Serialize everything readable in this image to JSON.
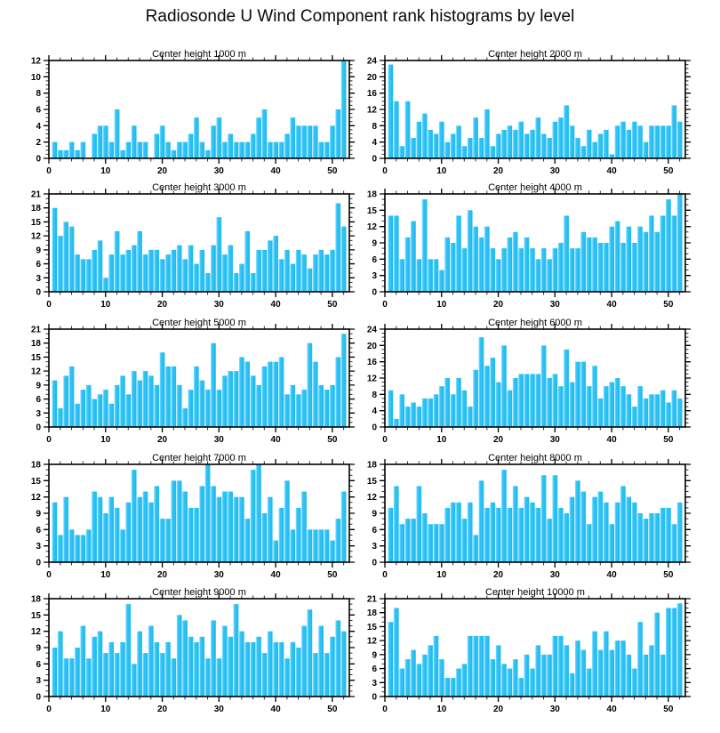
{
  "title": "Radiosonde U Wind Component rank histograms by level",
  "colors": {
    "bar_main": "#30C4F6",
    "bar_light": "#8EDFFE",
    "bar_dark": "#1FB9EF",
    "axis": "#000000",
    "minor_tick": "#333333",
    "text": "#000000",
    "background": "#FFFFFF"
  },
  "layout": {
    "rows": 5,
    "columns": 2,
    "grid": true,
    "legend": "none"
  },
  "chart_data": [
    {
      "type": "bar",
      "title": "Center height 1000 m",
      "xlim": [
        0,
        53
      ],
      "xticks": [
        0,
        10,
        20,
        30,
        40,
        50
      ],
      "x_minor_step": 2,
      "ylim": [
        0,
        12
      ],
      "ytick_step": 2,
      "values": [
        2,
        1,
        1,
        2,
        1,
        2,
        0,
        3,
        4,
        4,
        2,
        6,
        1,
        2,
        4,
        2,
        2,
        0,
        3,
        4,
        2,
        1,
        2,
        2,
        3,
        5,
        2,
        1,
        4,
        5,
        2,
        3,
        2,
        2,
        2,
        3,
        5,
        6,
        2,
        2,
        2,
        3,
        5,
        4,
        4,
        4,
        4,
        2,
        2,
        4,
        6,
        12
      ]
    },
    {
      "type": "bar",
      "title": "Center height 2000 m",
      "xlim": [
        0,
        53
      ],
      "xticks": [
        0,
        10,
        20,
        30,
        40,
        50
      ],
      "x_minor_step": 2,
      "ylim": [
        0,
        24
      ],
      "ytick_step": 4,
      "values": [
        23,
        14,
        3,
        14,
        5,
        9,
        11,
        7,
        6,
        9,
        4,
        6,
        8,
        3,
        5,
        10,
        5,
        12,
        3,
        6,
        7,
        8,
        7,
        9,
        6,
        7,
        10,
        6,
        5,
        9,
        10,
        13,
        8,
        5,
        3,
        7,
        4,
        6,
        7,
        1,
        8,
        9,
        7,
        9,
        8,
        4,
        8,
        8,
        8,
        8,
        13,
        9
      ]
    },
    {
      "type": "bar",
      "title": "Center height 3000 m",
      "xlim": [
        0,
        53
      ],
      "xticks": [
        0,
        10,
        20,
        30,
        40,
        50
      ],
      "x_minor_step": 2,
      "ylim": [
        0,
        21
      ],
      "ytick_step": 3,
      "values": [
        18,
        12,
        15,
        14,
        8,
        7,
        7,
        9,
        11,
        3,
        8,
        13,
        8,
        9,
        10,
        13,
        8,
        9,
        9,
        7,
        8,
        9,
        10,
        7,
        10,
        6,
        9,
        4,
        10,
        16,
        8,
        10,
        4,
        6,
        13,
        4,
        9,
        9,
        11,
        12,
        7,
        9,
        6,
        9,
        8,
        5,
        8,
        9,
        8,
        9,
        19,
        14
      ]
    },
    {
      "type": "bar",
      "title": "Center height 4000 m",
      "xlim": [
        0,
        53
      ],
      "xticks": [
        0,
        10,
        20,
        30,
        40,
        50
      ],
      "x_minor_step": 2,
      "ylim": [
        0,
        18
      ],
      "ytick_step": 3,
      "values": [
        14,
        14,
        6,
        10,
        13,
        6,
        17,
        6,
        6,
        4,
        10,
        9,
        14,
        8,
        15,
        12,
        10,
        12,
        8,
        6,
        8,
        10,
        11,
        8,
        10,
        8,
        6,
        8,
        6,
        8,
        9,
        14,
        8,
        8,
        11,
        10,
        10,
        9,
        9,
        12,
        13,
        9,
        12,
        9,
        12,
        11,
        14,
        11,
        14,
        17,
        14,
        18
      ]
    },
    {
      "type": "bar",
      "title": "Center height 5000 m",
      "xlim": [
        0,
        53
      ],
      "xticks": [
        0,
        10,
        20,
        30,
        40,
        50
      ],
      "x_minor_step": 2,
      "ylim": [
        0,
        21
      ],
      "ytick_step": 3,
      "values": [
        10,
        4,
        11,
        13,
        5,
        8,
        9,
        6,
        7,
        8,
        5,
        9,
        11,
        7,
        12,
        10,
        12,
        11,
        9,
        16,
        13,
        13,
        9,
        4,
        8,
        13,
        10,
        8,
        18,
        8,
        11,
        12,
        12,
        15,
        14,
        11,
        9,
        13,
        14,
        14,
        15,
        7,
        9,
        7,
        8,
        18,
        14,
        9,
        8,
        9,
        15,
        20
      ]
    },
    {
      "type": "bar",
      "title": "Center height 6000 m",
      "xlim": [
        0,
        53
      ],
      "xticks": [
        0,
        10,
        20,
        30,
        40,
        50
      ],
      "x_minor_step": 2,
      "ylim": [
        0,
        24
      ],
      "ytick_step": 4,
      "values": [
        9,
        2,
        8,
        5,
        6,
        5,
        7,
        7,
        8,
        10,
        12,
        8,
        12,
        9,
        5,
        14,
        22,
        15,
        17,
        11,
        20,
        9,
        12,
        13,
        13,
        13,
        13,
        20,
        12,
        13,
        10,
        19,
        11,
        16,
        16,
        10,
        15,
        7,
        10,
        11,
        12,
        10,
        8,
        5,
        10,
        7,
        8,
        8,
        9,
        6,
        9,
        7
      ]
    },
    {
      "type": "bar",
      "title": "Center height 7000 m",
      "xlim": [
        0,
        53
      ],
      "xticks": [
        0,
        10,
        20,
        30,
        40,
        50
      ],
      "x_minor_step": 2,
      "ylim": [
        0,
        18
      ],
      "ytick_step": 3,
      "values": [
        11,
        5,
        12,
        6,
        5,
        5,
        6,
        13,
        12,
        9,
        12,
        10,
        6,
        11,
        17,
        12,
        13,
        11,
        14,
        8,
        8,
        15,
        15,
        13,
        10,
        10,
        14,
        18,
        14,
        12,
        13,
        13,
        12,
        12,
        8,
        17,
        18,
        9,
        12,
        4,
        10,
        15,
        6,
        10,
        13,
        6,
        6,
        6,
        6,
        4,
        8,
        13
      ]
    },
    {
      "type": "bar",
      "title": "Center height 8000 m",
      "xlim": [
        0,
        53
      ],
      "xticks": [
        0,
        10,
        20,
        30,
        40,
        50
      ],
      "x_minor_step": 2,
      "ylim": [
        0,
        18
      ],
      "ytick_step": 3,
      "values": [
        10,
        14,
        7,
        8,
        8,
        14,
        9,
        7,
        7,
        7,
        10,
        11,
        11,
        8,
        11,
        5,
        15,
        10,
        11,
        10,
        17,
        10,
        14,
        10,
        12,
        11,
        10,
        16,
        8,
        16,
        10,
        9,
        12,
        15,
        13,
        7,
        12,
        13,
        11,
        7,
        11,
        14,
        12,
        11,
        9,
        8,
        9,
        9,
        10,
        10,
        7,
        11
      ]
    },
    {
      "type": "bar",
      "title": "Center height 9000 m",
      "xlim": [
        0,
        53
      ],
      "xticks": [
        0,
        10,
        20,
        30,
        40,
        50
      ],
      "x_minor_step": 2,
      "ylim": [
        0,
        18
      ],
      "ytick_step": 3,
      "values": [
        9,
        12,
        7,
        7,
        9,
        13,
        7,
        11,
        12,
        8,
        10,
        8,
        10,
        17,
        6,
        12,
        8,
        13,
        10,
        8,
        10,
        7,
        15,
        14,
        11,
        10,
        11,
        7,
        14,
        7,
        13,
        11,
        17,
        12,
        10,
        10,
        11,
        8,
        12,
        10,
        10,
        7,
        10,
        9,
        13,
        16,
        8,
        13,
        8,
        11,
        14,
        12
      ]
    },
    {
      "type": "bar",
      "title": "Center height 10000 m",
      "xlim": [
        0,
        53
      ],
      "xticks": [
        0,
        10,
        20,
        30,
        40,
        50
      ],
      "x_minor_step": 2,
      "ylim": [
        0,
        21
      ],
      "ytick_step": 3,
      "values": [
        16,
        19,
        6,
        8,
        10,
        7,
        9,
        11,
        13,
        8,
        4,
        4,
        6,
        7,
        13,
        13,
        13,
        13,
        8,
        11,
        7,
        6,
        8,
        4,
        9,
        6,
        11,
        9,
        9,
        13,
        13,
        11,
        5,
        12,
        10,
        6,
        14,
        10,
        14,
        10,
        12,
        12,
        9,
        6,
        16,
        9,
        11,
        18,
        9,
        19,
        19,
        20
      ]
    }
  ]
}
